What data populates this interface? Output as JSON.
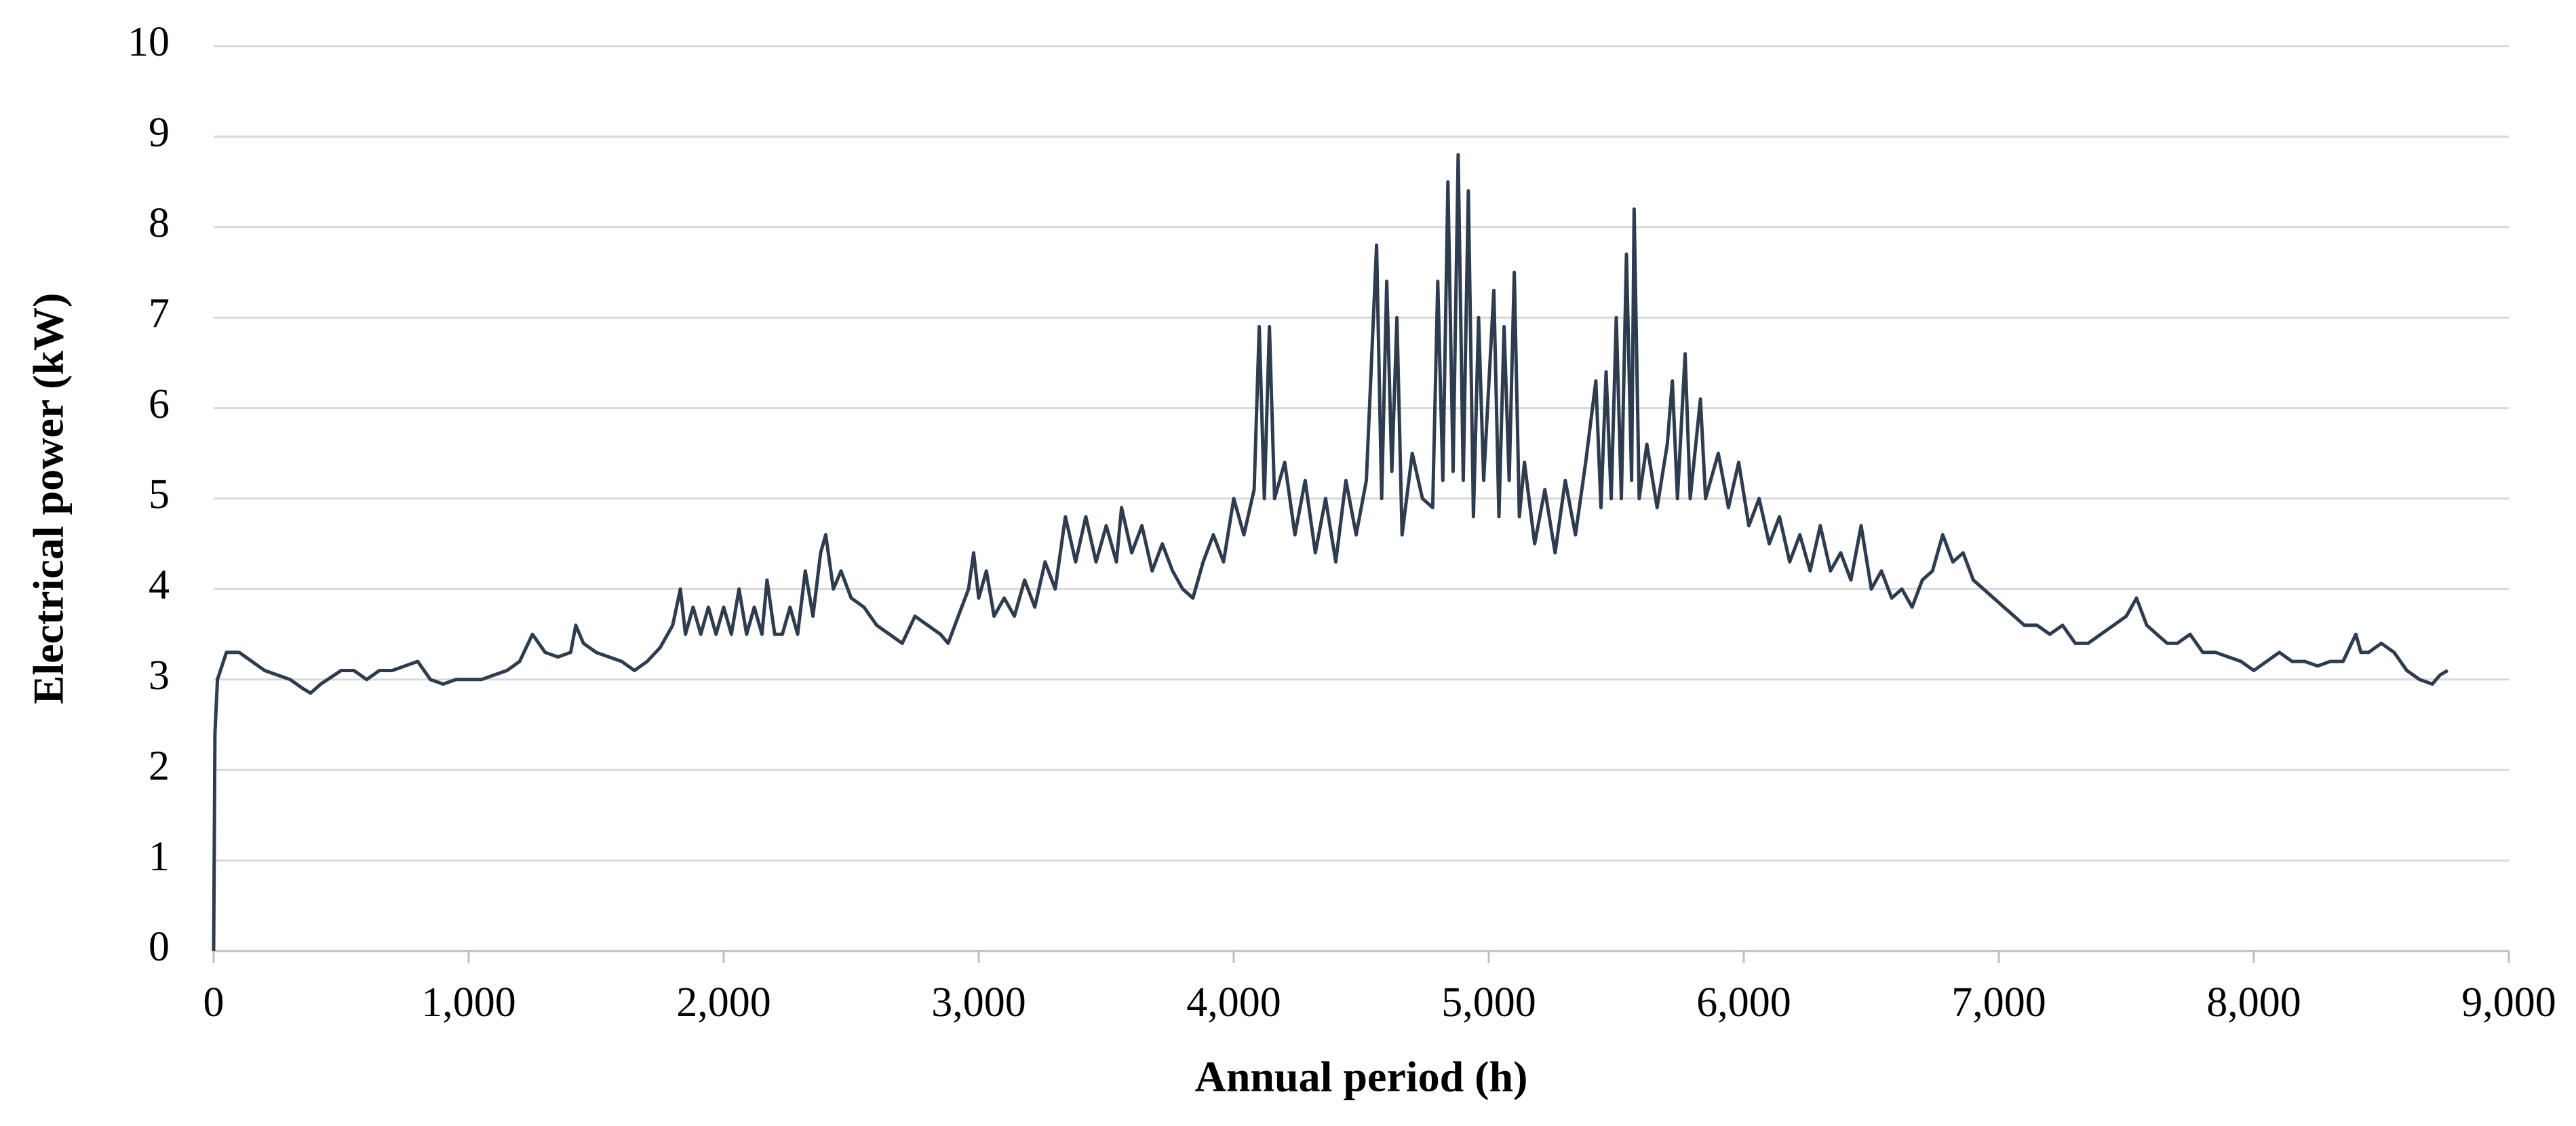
{
  "chart_data": {
    "type": "line",
    "xlabel": "Annual period (h)",
    "ylabel": "Electrical power (kW)",
    "xlim": [
      0,
      9000
    ],
    "xticks": [
      0,
      {
        "value": 1000,
        "label": "1,000"
      },
      {
        "value": 2000,
        "label": "2,000"
      },
      {
        "value": 3000,
        "label": "3,000"
      },
      {
        "value": 4000,
        "label": "4,000"
      },
      {
        "value": 5000,
        "label": "5,000"
      },
      {
        "value": 6000,
        "label": "6,000"
      },
      {
        "value": 7000,
        "label": "7,000"
      },
      {
        "value": 8000,
        "label": "8,000"
      },
      {
        "value": 9000,
        "label": "9,000"
      }
    ],
    "ylim": [
      0,
      10
    ],
    "yticks": [
      0,
      1,
      2,
      3,
      4,
      5,
      6,
      7,
      8,
      9,
      10
    ],
    "grid": true,
    "x": [
      0,
      5,
      15,
      50,
      100,
      150,
      200,
      250,
      300,
      350,
      380,
      420,
      500,
      550,
      600,
      650,
      700,
      750,
      800,
      850,
      900,
      950,
      1000,
      1050,
      1100,
      1150,
      1200,
      1250,
      1300,
      1350,
      1400,
      1420,
      1450,
      1500,
      1550,
      1600,
      1650,
      1700,
      1750,
      1800,
      1830,
      1850,
      1880,
      1910,
      1940,
      1970,
      2000,
      2030,
      2060,
      2090,
      2120,
      2150,
      2170,
      2200,
      2230,
      2260,
      2290,
      2320,
      2350,
      2380,
      2400,
      2430,
      2460,
      2500,
      2550,
      2600,
      2650,
      2700,
      2750,
      2800,
      2850,
      2880,
      2920,
      2960,
      2980,
      3000,
      3030,
      3060,
      3100,
      3140,
      3180,
      3220,
      3260,
      3300,
      3340,
      3380,
      3420,
      3460,
      3500,
      3540,
      3560,
      3600,
      3640,
      3680,
      3720,
      3760,
      3800,
      3840,
      3880,
      3920,
      3960,
      4000,
      4040,
      4080,
      4100,
      4120,
      4140,
      4160,
      4200,
      4240,
      4280,
      4320,
      4360,
      4400,
      4440,
      4480,
      4520,
      4560,
      4580,
      4600,
      4620,
      4640,
      4660,
      4700,
      4740,
      4780,
      4800,
      4820,
      4840,
      4860,
      4880,
      4900,
      4920,
      4940,
      4960,
      4980,
      5020,
      5040,
      5060,
      5080,
      5100,
      5120,
      5140,
      5180,
      5220,
      5260,
      5300,
      5340,
      5380,
      5420,
      5440,
      5460,
      5480,
      5500,
      5520,
      5540,
      5560,
      5570,
      5590,
      5620,
      5660,
      5700,
      5720,
      5740,
      5770,
      5790,
      5830,
      5850,
      5900,
      5940,
      5980,
      6020,
      6060,
      6100,
      6140,
      6180,
      6220,
      6260,
      6300,
      6340,
      6380,
      6420,
      6460,
      6500,
      6540,
      6580,
      6620,
      6660,
      6700,
      6740,
      6780,
      6820,
      6860,
      6900,
      6940,
      6980,
      7020,
      7060,
      7100,
      7150,
      7200,
      7250,
      7300,
      7350,
      7400,
      7450,
      7500,
      7540,
      7580,
      7620,
      7660,
      7700,
      7750,
      7800,
      7850,
      7900,
      7950,
      8000,
      8050,
      8100,
      8150,
      8200,
      8250,
      8300,
      8350,
      8400,
      8420,
      8450,
      8500,
      8550,
      8600,
      8650,
      8700,
      8730,
      8760
    ],
    "series": [
      {
        "color": "#2e3c50",
        "values": [
          0,
          2.4,
          3.0,
          3.3,
          3.3,
          3.2,
          3.1,
          3.05,
          3.0,
          2.9,
          2.85,
          2.95,
          3.1,
          3.1,
          3.0,
          3.1,
          3.1,
          3.15,
          3.2,
          3.0,
          2.95,
          3.0,
          3.0,
          3.0,
          3.05,
          3.1,
          3.2,
          3.5,
          3.3,
          3.25,
          3.3,
          3.6,
          3.4,
          3.3,
          3.25,
          3.2,
          3.1,
          3.2,
          3.35,
          3.6,
          4.0,
          3.5,
          3.8,
          3.5,
          3.8,
          3.5,
          3.8,
          3.5,
          4.0,
          3.5,
          3.8,
          3.5,
          4.1,
          3.5,
          3.5,
          3.8,
          3.5,
          4.2,
          3.7,
          4.4,
          4.6,
          4.0,
          4.2,
          3.9,
          3.8,
          3.6,
          3.5,
          3.4,
          3.7,
          3.6,
          3.5,
          3.4,
          3.7,
          4.0,
          4.4,
          3.9,
          4.2,
          3.7,
          3.9,
          3.7,
          4.1,
          3.8,
          4.3,
          4.0,
          4.8,
          4.3,
          4.8,
          4.3,
          4.7,
          4.3,
          4.9,
          4.4,
          4.7,
          4.2,
          4.5,
          4.2,
          4.0,
          3.9,
          4.3,
          4.6,
          4.3,
          5.0,
          4.6,
          5.1,
          6.9,
          5.0,
          6.9,
          5.0,
          5.4,
          4.6,
          5.2,
          4.4,
          5.0,
          4.3,
          5.2,
          4.6,
          5.2,
          7.8,
          5.0,
          7.4,
          5.3,
          7.0,
          4.6,
          5.5,
          5.0,
          4.9,
          7.4,
          5.2,
          8.5,
          5.3,
          8.8,
          5.2,
          8.4,
          4.8,
          7.0,
          5.2,
          7.3,
          4.8,
          6.9,
          5.2,
          7.5,
          4.8,
          5.4,
          4.5,
          5.1,
          4.4,
          5.2,
          4.6,
          5.4,
          6.3,
          4.9,
          6.4,
          5.0,
          7.0,
          5.0,
          7.7,
          5.2,
          8.2,
          5.0,
          5.6,
          4.9,
          5.6,
          6.3,
          5.0,
          6.6,
          5.0,
          6.1,
          5.0,
          5.5,
          4.9,
          5.4,
          4.7,
          5.0,
          4.5,
          4.8,
          4.3,
          4.6,
          4.2,
          4.7,
          4.2,
          4.4,
          4.1,
          4.7,
          4.0,
          4.2,
          3.9,
          4.0,
          3.8,
          4.1,
          4.2,
          4.6,
          4.3,
          4.4,
          4.1,
          4.0,
          3.9,
          3.8,
          3.7,
          3.6,
          3.6,
          3.5,
          3.6,
          3.4,
          3.4,
          3.5,
          3.6,
          3.7,
          3.9,
          3.6,
          3.5,
          3.4,
          3.4,
          3.5,
          3.3,
          3.3,
          3.25,
          3.2,
          3.1,
          3.2,
          3.3,
          3.2,
          3.2,
          3.15,
          3.2,
          3.2,
          3.5,
          3.3,
          3.3,
          3.4,
          3.3,
          3.1,
          3.0,
          2.95,
          3.05,
          3.1
        ]
      }
    ]
  }
}
